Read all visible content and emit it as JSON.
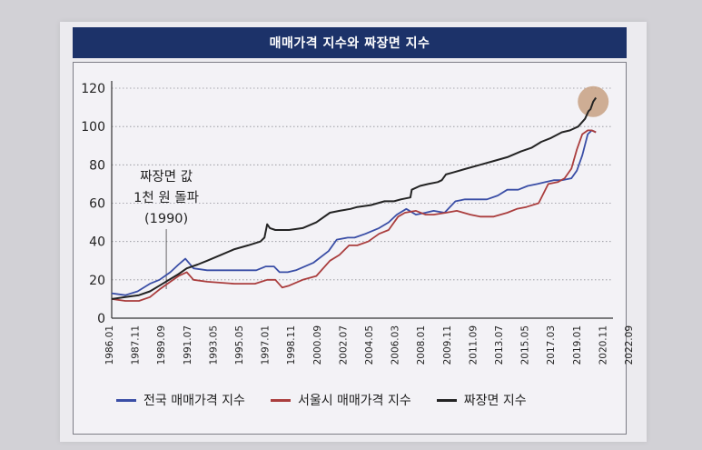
{
  "title": "매매가격 지수와 짜장면 지수",
  "annotation": [
    "짜장면 값",
    "1천 원 돌파",
    "(1990)"
  ],
  "chart_data": {
    "type": "line",
    "title": "매매가격 지수와 짜장면 지수",
    "xlabel": "",
    "ylabel": "",
    "ylim": [
      0,
      120
    ],
    "yticks": [
      0,
      20,
      40,
      60,
      80,
      100,
      120
    ],
    "xlim": [
      1986.0,
      2022.75
    ],
    "xtick_labels": [
      "1986.01",
      "1987.11",
      "1989.09",
      "1991.07",
      "1993.05",
      "1995.05",
      "1997.01",
      "1998.11",
      "2000.09",
      "2002.07",
      "2004.05",
      "2006.03",
      "2008.01",
      "2009.11",
      "2011.09",
      "2013.07",
      "2015.05",
      "2017.03",
      "2019.01",
      "2020.11",
      "2022.09"
    ],
    "grid": "horizontal dotted",
    "legend": "bottom",
    "highlight": {
      "x": 2021.3,
      "y": 113,
      "color": "#c7a182"
    },
    "annotation_x": 1990.0,
    "series": [
      {
        "name": "전국 매매가격 지수",
        "color": "#3a4ea6",
        "x": [
          1986.0,
          1987.0,
          1987.9,
          1988.8,
          1989.5,
          1990.3,
          1990.9,
          1991.4,
          1992.0,
          1993.0,
          1995.0,
          1996.6,
          1997.3,
          1997.9,
          1998.3,
          1998.9,
          1999.5,
          2000.8,
          2001.9,
          2002.5,
          2003.3,
          2003.8,
          2004.6,
          2005.6,
          2006.3,
          2006.9,
          2007.6,
          2008.3,
          2009.0,
          2009.6,
          2010.4,
          2011.2,
          2011.9,
          2012.5,
          2013.5,
          2014.3,
          2015.0,
          2015.8,
          2016.5,
          2017.2,
          2017.8,
          2018.4,
          2019.0,
          2019.7,
          2020.1,
          2020.5,
          2020.9,
          2021.2,
          2021.5
        ],
        "y": [
          13,
          12,
          14,
          18,
          20,
          24,
          28,
          31,
          26,
          25,
          25,
          25,
          27,
          27,
          24,
          24,
          25,
          29,
          35,
          41,
          42,
          42,
          44,
          47,
          50,
          54,
          57,
          54,
          55,
          56,
          55,
          61,
          62,
          62,
          62,
          64,
          67,
          67,
          69,
          70,
          71,
          72,
          72,
          73,
          77,
          85,
          96,
          98,
          97
        ]
      },
      {
        "name": "서울시 매매가격 지수",
        "color": "#aa3d3d",
        "x": [
          1986.0,
          1987.0,
          1988.0,
          1988.8,
          1989.5,
          1990.3,
          1990.9,
          1991.5,
          1992.0,
          1993.0,
          1995.0,
          1996.5,
          1997.4,
          1998.0,
          1998.5,
          1999.0,
          2000.0,
          2001.0,
          2002.0,
          2002.7,
          2003.4,
          2004.0,
          2004.8,
          2005.6,
          2006.3,
          2007.0,
          2007.5,
          2008.3,
          2009.0,
          2009.6,
          2010.5,
          2011.3,
          2012.3,
          2013.0,
          2014.0,
          2015.0,
          2015.7,
          2016.4,
          2017.3,
          2018.0,
          2018.7,
          2019.2,
          2019.7,
          2020.1,
          2020.5,
          2020.9,
          2021.2,
          2021.5
        ],
        "y": [
          10,
          9,
          9,
          11,
          15,
          19,
          22,
          24,
          20,
          19,
          18,
          18,
          20,
          20,
          16,
          17,
          20,
          22,
          30,
          33,
          38,
          38,
          40,
          44,
          46,
          53,
          55,
          56,
          54,
          54,
          55,
          56,
          54,
          53,
          53,
          55,
          57,
          58,
          60,
          70,
          71,
          73,
          78,
          88,
          96,
          98,
          98,
          97
        ]
      },
      {
        "name": "짜장면 지수",
        "color": "#232323",
        "x": [
          1986.0,
          1987.0,
          1988.0,
          1988.8,
          1989.5,
          1990.2,
          1990.9,
          1991.5,
          1992.3,
          1993.0,
          1994.0,
          1995.0,
          1996.0,
          1996.9,
          1997.2,
          1997.4,
          1997.6,
          1998.0,
          1999.0,
          2000.0,
          2001.0,
          2002.0,
          2002.7,
          2003.5,
          2004.0,
          2005.0,
          2006.0,
          2006.7,
          2007.2,
          2007.9,
          2008.0,
          2008.6,
          2009.2,
          2009.9,
          2010.2,
          2010.5,
          2011.0,
          2012.0,
          2013.0,
          2014.0,
          2015.0,
          2016.0,
          2016.8,
          2017.5,
          2018.2,
          2019.0,
          2019.6,
          2020.2,
          2020.7,
          2020.95,
          2021.1,
          2021.3,
          2021.5
        ],
        "y": [
          10,
          11,
          12,
          14,
          17,
          20,
          23,
          26,
          28,
          30,
          33,
          36,
          38,
          40,
          42,
          49,
          47,
          46,
          46,
          47,
          50,
          55,
          56,
          57,
          58,
          59,
          61,
          61,
          62,
          63,
          67,
          69,
          70,
          71,
          72,
          75,
          76,
          78,
          80,
          82,
          84,
          87,
          89,
          92,
          94,
          97,
          98,
          100,
          104,
          108,
          109,
          113,
          115
        ]
      }
    ]
  }
}
